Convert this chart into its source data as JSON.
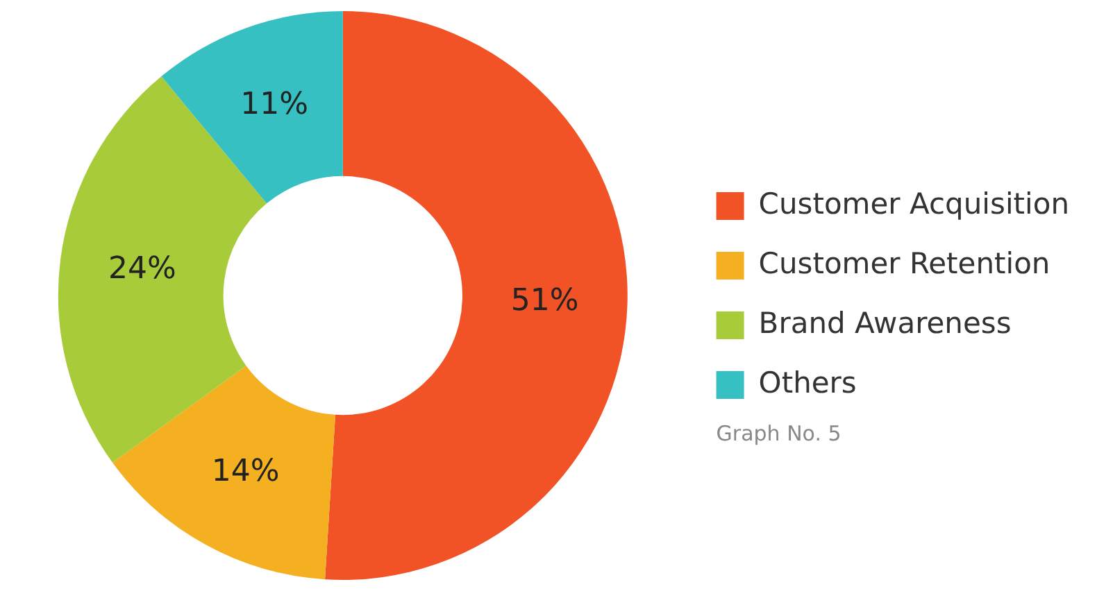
{
  "chart_data": {
    "type": "donut",
    "categories": [
      "Customer Acquisition",
      "Customer Retention",
      "Brand Awareness",
      "Others"
    ],
    "values": [
      51,
      14,
      24,
      11
    ],
    "colors": [
      "#f15326",
      "#f4b020",
      "#a8cb3a",
      "#37c0c2"
    ],
    "value_labels": [
      "51%",
      "14%",
      "24%",
      "11%"
    ],
    "legend": "right",
    "annotations": [
      "Graph No. 5"
    ]
  }
}
